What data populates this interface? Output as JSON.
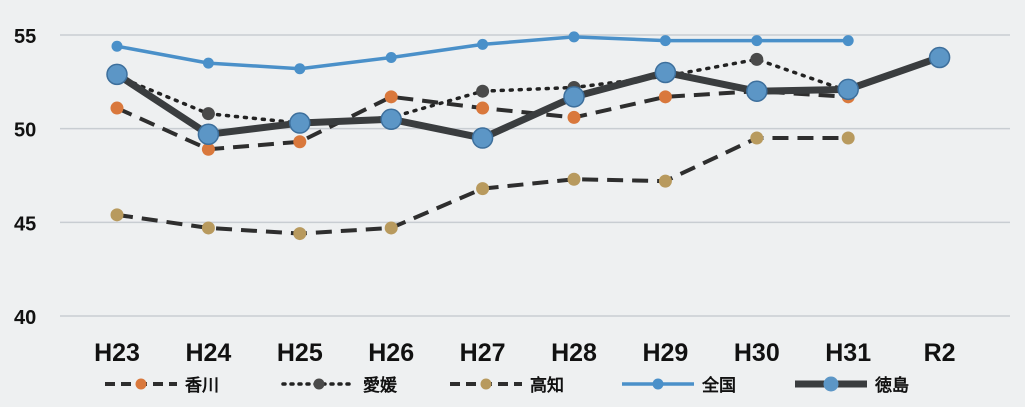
{
  "chart_data": {
    "type": "line",
    "title": "",
    "xlabel": "",
    "ylabel": "",
    "ylim": [
      40,
      55
    ],
    "yticks": [
      40,
      45,
      50,
      55
    ],
    "categories": [
      "H23",
      "H24",
      "H25",
      "H26",
      "H27",
      "H28",
      "H29",
      "H30",
      "H31",
      "R2"
    ],
    "grid": true,
    "legend_position": "bottom",
    "series": [
      {
        "name": "香川",
        "style": "dashed",
        "line_color": "#2e2e2e",
        "marker_color": "#d9783c",
        "values": [
          51.1,
          48.9,
          49.3,
          51.7,
          51.1,
          50.6,
          51.7,
          52.0,
          51.7,
          null
        ]
      },
      {
        "name": "愛媛",
        "style": "dotted",
        "line_color": "#222222",
        "marker_color": "#4a4a4a",
        "values": [
          52.8,
          50.8,
          50.3,
          50.6,
          52.0,
          52.2,
          52.8,
          53.7,
          52.0,
          null
        ]
      },
      {
        "name": "高知",
        "style": "dashed",
        "line_color": "#2e2e2e",
        "marker_color": "#b89a5e",
        "values": [
          45.4,
          44.7,
          44.4,
          44.7,
          46.8,
          47.3,
          47.2,
          49.5,
          49.5,
          null
        ]
      },
      {
        "name": "全国",
        "style": "solid",
        "line_color": "#4a90c9",
        "marker_color": "#4a90c9",
        "values": [
          54.4,
          53.5,
          53.2,
          53.8,
          54.5,
          54.9,
          54.7,
          54.7,
          54.7,
          null
        ]
      },
      {
        "name": "徳島",
        "style": "solid-thick",
        "line_color": "#3a3d3f",
        "marker_color": "#5c96c6",
        "values": [
          52.9,
          49.7,
          50.3,
          50.5,
          49.5,
          51.7,
          53.0,
          52.0,
          52.1,
          53.8
        ]
      }
    ]
  },
  "colors": {
    "background": "#eef0f1",
    "gridline": "#c8cdd2",
    "axis_text": "#111111"
  }
}
